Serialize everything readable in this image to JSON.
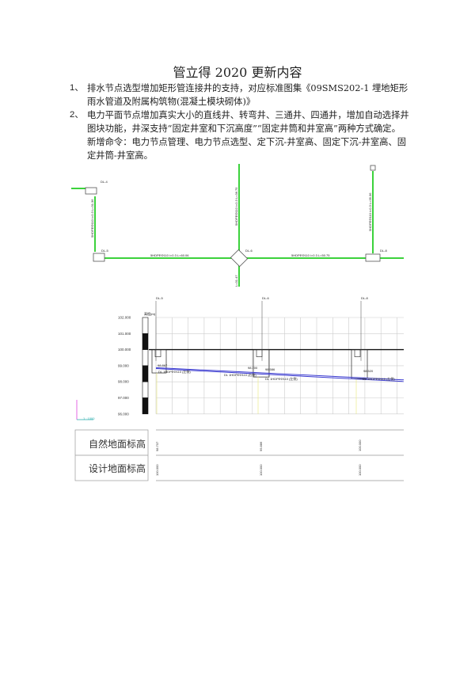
{
  "title": "管立得 2020 更新内容",
  "items": [
    {
      "num": "1、",
      "text": "排水节点选型增加矩形管连接井的支持，对应标准图集《09SMS202-1 埋地矩形雨水管道及附属构筑物(混凝土模块砌体)》"
    },
    {
      "num": "2、",
      "text": "电力平面节点增加真实大小的直线井、转弯井、三通井、四通井，增加自动选择井图块功能，井深支持“固定井室和下沉高度”“固定井筒和井室高”两种方式确定。",
      "extra": "新增命令：电力节点管理、电力节点选型、定下沉-井室高、固定下沉-井室高、固定井筒-井室高。"
    }
  ],
  "plan": {
    "nodes": [
      "DL-4",
      "DL-5",
      "DL-6",
      "DL-8"
    ],
    "pipe_labels": [
      "5HDPEΦ110 i=0.3 L=60.06",
      "5HDPEΦ110 i=0.3 L=50.75",
      "5HDPEΦ110 i=0.3 L=31.36",
      "5HDPEΦ110 i=0.3 L=36.75",
      "5HDPEΦ110 i=0.3 L=35.36",
      "L=31.47"
    ],
    "pipe_color": "#3cd23c"
  },
  "profile": {
    "axis_label": "高程(m)",
    "y_ticks": [
      "102.000",
      "101.000",
      "100.000",
      "99.000",
      "98.000",
      "97.000",
      "96.000"
    ],
    "wells": [
      "DL-5",
      "DL-6",
      "DL-8"
    ],
    "pipe_labels": [
      "DL 1HDPEΦ110 (左侧)",
      "DL 1HDPEΦ110 (右侧)",
      "DL 1HDPEΦ110 (左侧)",
      "DL 1HDPEΦ110 (左侧)"
    ],
    "elev_labels": [
      "98.867",
      "98.700",
      "98.586",
      "98.520"
    ],
    "scale_label": "1 : 1000",
    "pipe_color": "#3b3bd0",
    "table": {
      "rows": [
        {
          "label": "自然地面标高",
          "values": [
            "98.707",
            "99.886",
            "100.000"
          ]
        },
        {
          "label": "设计地面标高",
          "values": [
            "100.000",
            "100.000",
            "100.000"
          ]
        }
      ]
    }
  }
}
